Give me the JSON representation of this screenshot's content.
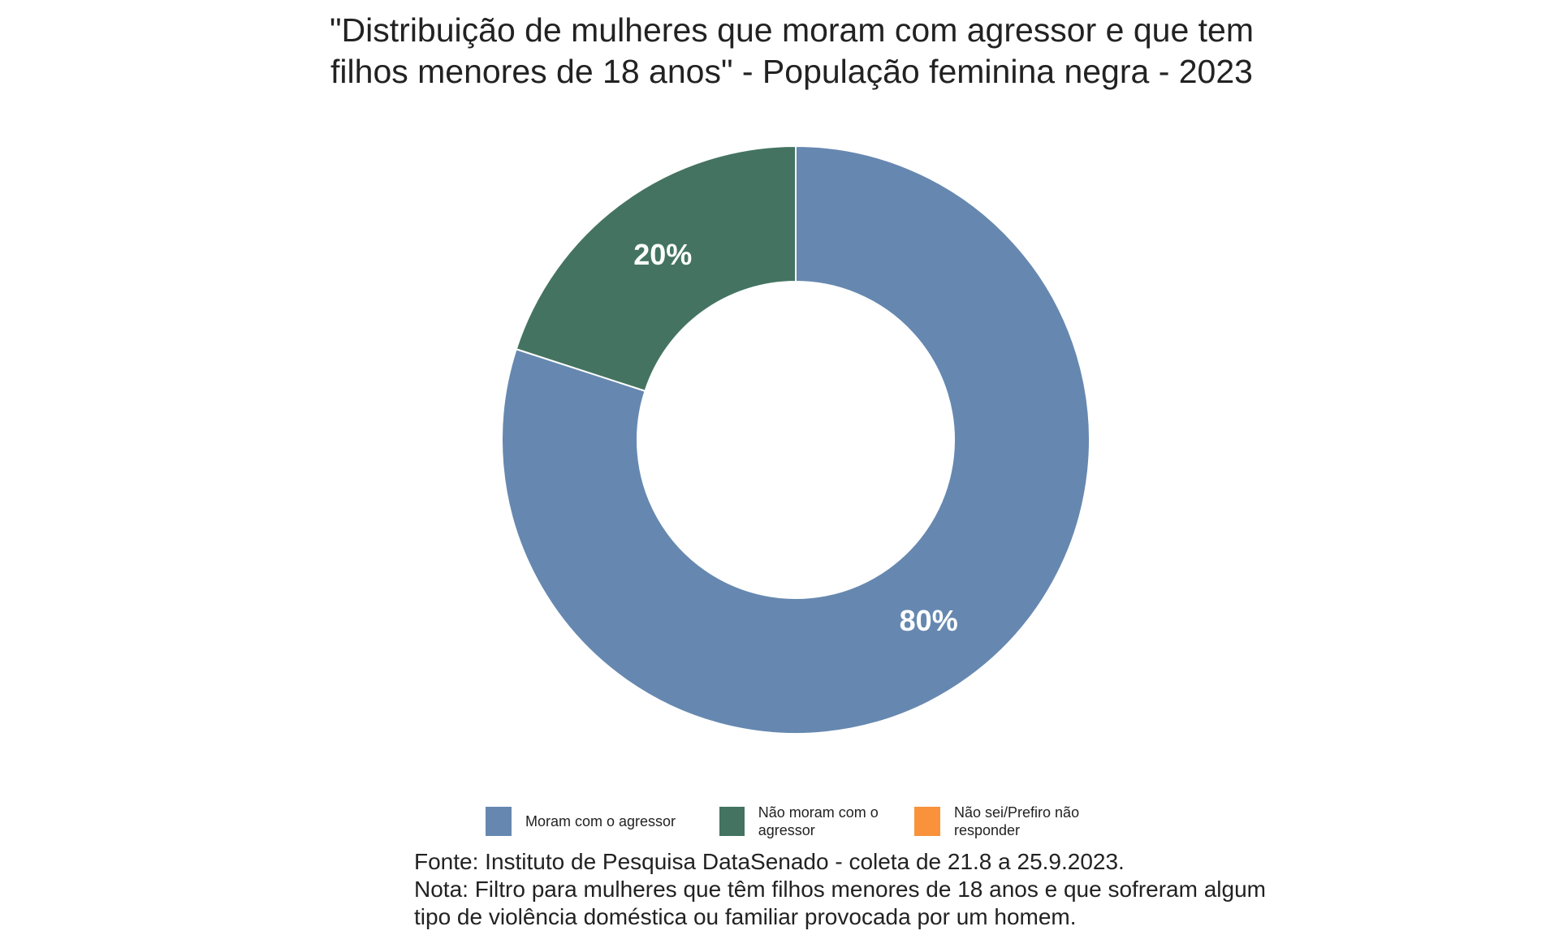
{
  "chart_data": {
    "type": "donut",
    "title": [
      "\"Distribuição de mulheres que moram com agressor e que tem",
      "filhos menores de 18 anos\" - População feminina negra - 2023"
    ],
    "categories": [
      "Moram com o agressor",
      "Não moram com o agressor",
      "Não sei/Prefiro não responder"
    ],
    "values": [
      80,
      20,
      0
    ],
    "data_labels": [
      "80%",
      "20%",
      ""
    ],
    "colors": [
      "#6688b0",
      "#447461",
      "#f9923a"
    ],
    "legend_placement": "bottom"
  },
  "notes": {
    "source": "Fonte: Instituto de Pesquisa DataSenado - coleta de 21.8 a 25.9.2023.",
    "note_line1": "Nota: Filtro para mulheres que têm filhos menores de 18 anos e que sofreram algum",
    "note_line2": "tipo de violência doméstica ou familiar provocada por um homem."
  },
  "legend": {
    "labels": [
      "Moram com o agressor",
      "Não moram com o\nagressor",
      "Não sei/Prefiro não\nresponder"
    ]
  }
}
